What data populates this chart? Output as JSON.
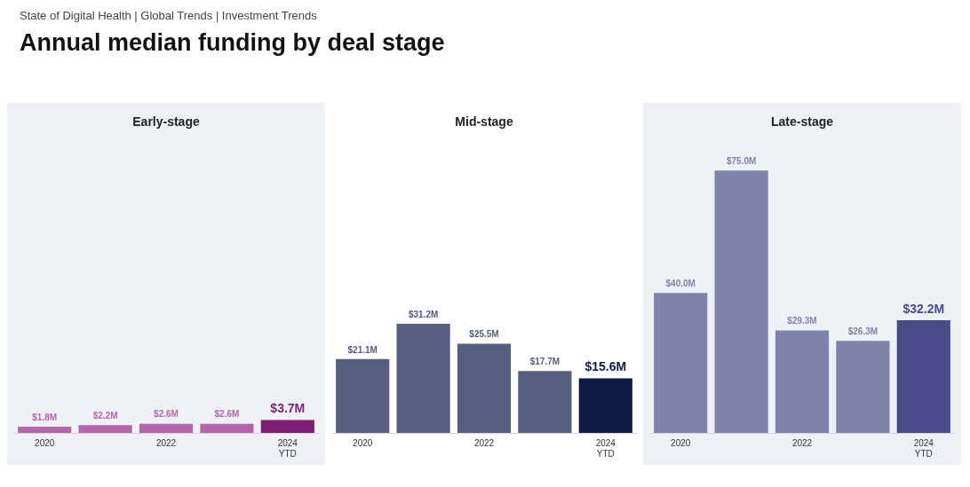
{
  "chart_data": [
    {
      "type": "bar",
      "subtitle": "State of Digital Health | Global Trends | Investment Trends",
      "title": "Annual median funding by deal stage",
      "annotations": [
        "Early-stage"
      ],
      "categories": [
        "2020",
        null,
        "2022",
        null,
        "2024 YTD"
      ],
      "values": [
        1.8,
        2.2,
        2.6,
        2.6,
        3.7
      ],
      "colors": [
        "#b466ab",
        "#b466ab",
        "#b466ab",
        "#b466ab",
        "#7e1f74"
      ],
      "value_labels": [
        "$1.8M",
        "$2.2M",
        "$2.6M",
        "$2.6M",
        "$3.7M"
      ],
      "tick_labels": "x",
      "grid": false,
      "legend": false
    },
    {
      "type": "bar",
      "annotations": [
        "Mid-stage"
      ],
      "categories": [
        "2020",
        null,
        "2022",
        null,
        "2024 YTD"
      ],
      "values": [
        21.1,
        31.2,
        25.5,
        17.7,
        15.6
      ],
      "colors": [
        "#56607e",
        "#56607e",
        "#56607e",
        "#56607e",
        "#0f1a45"
      ],
      "value_labels": [
        "$21.1M",
        "$31.2M",
        "$25.5M",
        "$17.7M",
        "$15.6M"
      ],
      "tick_labels": "x",
      "grid": false,
      "legend": false
    },
    {
      "type": "bar",
      "annotations": [
        "Late-stage"
      ],
      "categories": [
        "2020",
        null,
        "2022",
        null,
        "2024 YTD"
      ],
      "values": [
        40.0,
        75.0,
        29.3,
        26.3,
        32.2
      ],
      "colors": [
        "#8084aa",
        "#8084aa",
        "#8084aa",
        "#8084aa",
        "#4b4a88"
      ],
      "value_labels": [
        "$40.0M",
        "$75.0M",
        "$29.3M",
        "$26.3M",
        "$32.2M"
      ],
      "tick_labels": "x",
      "grid": false,
      "legend": false
    }
  ]
}
